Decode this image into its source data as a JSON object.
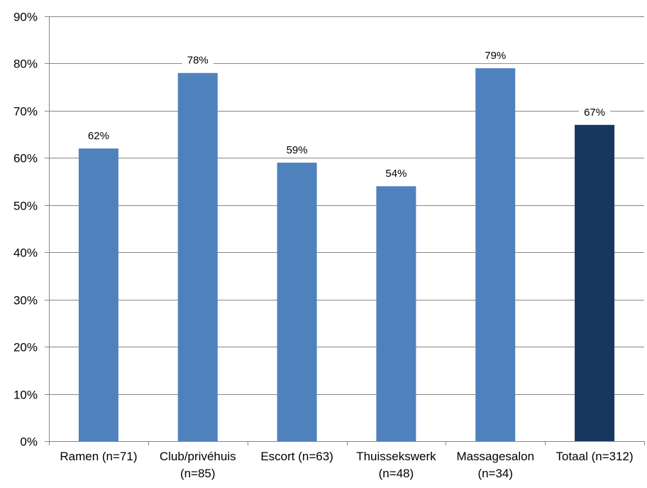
{
  "chart_data": {
    "type": "bar",
    "title": "",
    "xlabel": "",
    "ylabel": "",
    "categories": [
      [
        "Ramen (n=71)"
      ],
      [
        "Club/privéhuis",
        "(n=85)"
      ],
      [
        "Escort (n=63)"
      ],
      [
        "Thuissekswerk",
        "(n=48)"
      ],
      [
        "Massagesalon",
        "(n=34)"
      ],
      [
        "Totaal (n=312)"
      ]
    ],
    "values": [
      62,
      78,
      59,
      54,
      79,
      67
    ],
    "data_labels": [
      "62%",
      "78%",
      "59%",
      "54%",
      "79%",
      "67%"
    ],
    "bar_colors": [
      "#4f81bd",
      "#4f81bd",
      "#4f81bd",
      "#4f81bd",
      "#4f81bd",
      "#17375e"
    ],
    "ylim": [
      0,
      90
    ],
    "yticks": [
      0,
      10,
      20,
      30,
      40,
      50,
      60,
      70,
      80,
      90
    ],
    "ytick_labels": [
      "0%",
      "10%",
      "20%",
      "30%",
      "40%",
      "50%",
      "60%",
      "70%",
      "80%",
      "90%"
    ],
    "grid": true,
    "gridline_color": "#868686",
    "legend": "none"
  }
}
